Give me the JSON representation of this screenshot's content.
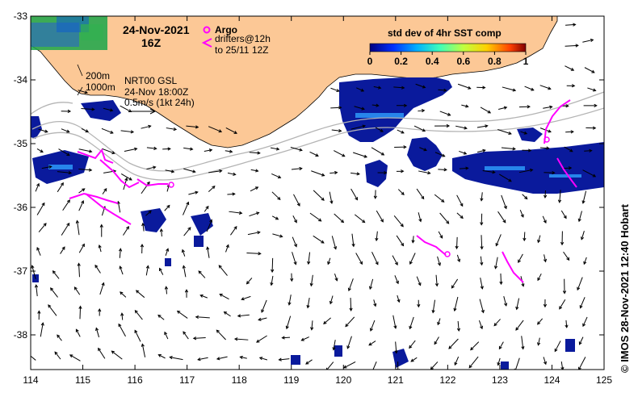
{
  "map": {
    "date_title": "24-Nov-2021",
    "time_title": "16Z",
    "legend_argo": "Argo",
    "legend_drifters_line1": "drifters@12h",
    "legend_drifters_line2": "to 25/11 12Z",
    "depth_label_200": "200m",
    "depth_label_1000": "1000m",
    "model_label": "NRT00 GSL",
    "model_time": "24-Nov 18:00Z",
    "scale_label": "0.5m/s (1kt 24h)",
    "credit": "© IMOS 28-Nov-2021 12:40 Hobart"
  },
  "colorbar": {
    "title": "std dev of 4hr SST comp",
    "ticks": [
      "0",
      "0.2",
      "0.4",
      "0.6",
      "0.8",
      "1"
    ],
    "colors": [
      "#00007f",
      "#0030ff",
      "#00b0ff",
      "#40ffb8",
      "#c0ff40",
      "#ffd000",
      "#ff4000",
      "#7f0000"
    ]
  },
  "axes": {
    "x_ticks": [
      "114",
      "115",
      "116",
      "117",
      "118",
      "119",
      "120",
      "121",
      "122",
      "123",
      "124",
      "125"
    ],
    "y_ticks": [
      "-33",
      "-34",
      "-35",
      "-36",
      "-37",
      "-38"
    ]
  },
  "colors": {
    "land": "#fcc896",
    "argo": "#ff00ff",
    "sst_patch": "#0a1a9c",
    "contour": "#b4b4b4"
  }
}
